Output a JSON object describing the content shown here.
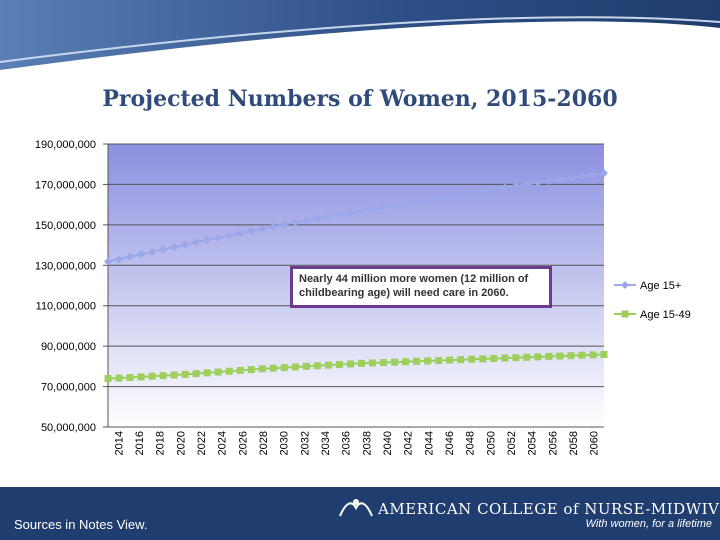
{
  "slide": {
    "title": "Projected Numbers of Women, 2015-2060",
    "sources": "Sources in Notes View.",
    "callout": "Nearly 44 million more women (12 million of childbearing age) will need care in 2060."
  },
  "logo": {
    "name": "AMERICAN COLLEGE of NURSE-MIDWIVES",
    "tagline": "With women, for a lifetime"
  },
  "colors": {
    "band": "#1f3d6e",
    "plot_bg_top": "#8b8fe0",
    "plot_bg_bottom": "#ffffff",
    "series_15plus": "#9aa8ea",
    "series_15_49": "#9ccf5b"
  },
  "chart_data": {
    "type": "line",
    "title": "Projected Numbers of Women, 2015-2060",
    "xlabel": "",
    "ylabel": "",
    "ylim": [
      50000000,
      190000000
    ],
    "ytick_values": [
      50000000,
      70000000,
      90000000,
      110000000,
      130000000,
      150000000,
      170000000,
      190000000
    ],
    "ytick_labels": [
      "50,000,000",
      "70,000,000",
      "90,000,000",
      "110,000,000",
      "130,000,000",
      "150,000,000",
      "170,000,000",
      "190,000,000"
    ],
    "x_start": 2015,
    "x_end": 2060,
    "xtick_labels": [
      "2014",
      "2016",
      "2018",
      "2020",
      "2022",
      "2024",
      "2026",
      "2028",
      "2030",
      "2032",
      "2034",
      "2036",
      "2038",
      "2040",
      "2042",
      "2044",
      "2046",
      "2048",
      "2050",
      "2052",
      "2054",
      "2056",
      "2058",
      "2060"
    ],
    "grid": true,
    "legend_position": "right",
    "series": [
      {
        "name": "Age 15+",
        "marker": "diamond",
        "values": [
          131800000,
          133000000,
          134200000,
          135400000,
          136600000,
          137800000,
          139000000,
          140200000,
          141400000,
          142600000,
          143700000,
          144800000,
          145900000,
          147000000,
          148100000,
          149200000,
          150200000,
          151200000,
          152200000,
          153200000,
          154200000,
          155200000,
          156100000,
          157000000,
          157900000,
          158800000,
          159700000,
          160600000,
          161500000,
          162400000,
          163300000,
          164200000,
          165100000,
          166000000,
          166900000,
          167700000,
          168500000,
          169300000,
          170100000,
          170900000,
          171700000,
          172500000,
          173300000,
          174100000,
          174900000,
          175600000
        ]
      },
      {
        "name": "Age 15-49",
        "marker": "square",
        "values": [
          74000000,
          74200000,
          74500000,
          74800000,
          75100000,
          75400000,
          75700000,
          76000000,
          76400000,
          76800000,
          77200000,
          77600000,
          78000000,
          78400000,
          78800000,
          79100000,
          79400000,
          79700000,
          80000000,
          80300000,
          80600000,
          80900000,
          81200000,
          81500000,
          81700000,
          81900000,
          82100000,
          82300000,
          82500000,
          82700000,
          82900000,
          83100000,
          83300000,
          83500000,
          83700000,
          83900000,
          84100000,
          84300000,
          84500000,
          84700000,
          84900000,
          85100000,
          85300000,
          85500000,
          85700000,
          85900000
        ]
      }
    ]
  }
}
